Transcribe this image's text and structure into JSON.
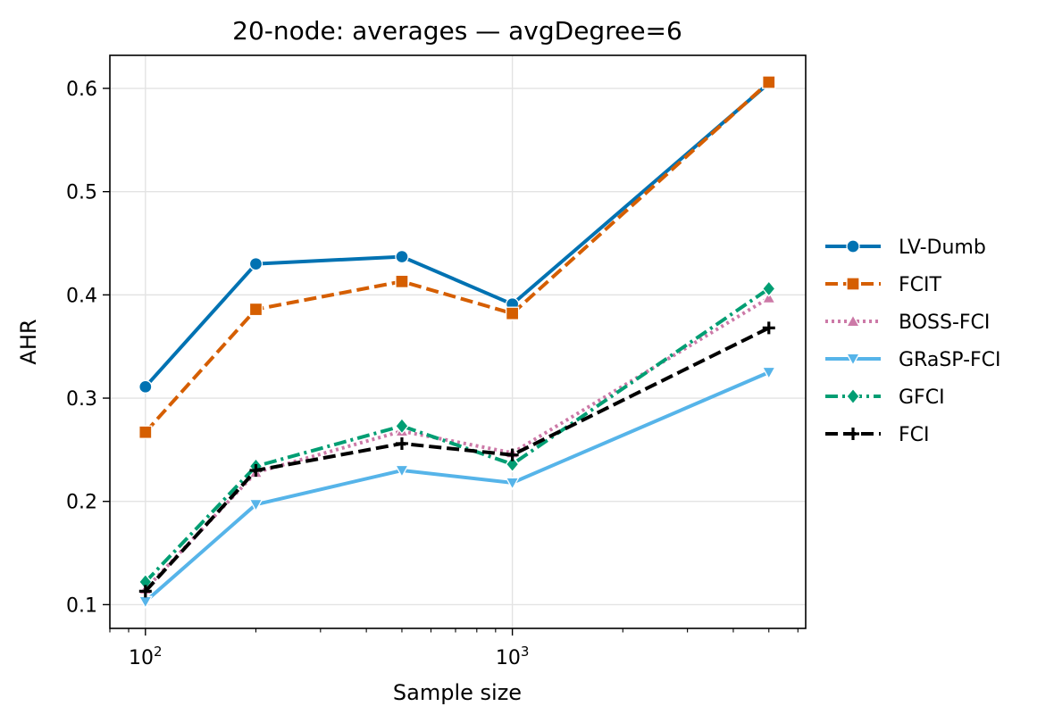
{
  "chart_data": {
    "type": "line",
    "title": "20-node: averages — avgDegree=6",
    "xlabel": "Sample size",
    "ylabel": "AHR",
    "xscale": "log",
    "xlim": [
      80,
      6300
    ],
    "ylim": [
      0.077,
      0.632
    ],
    "grid": true,
    "legend_position": "right-outside",
    "x_ticks": [
      {
        "value": 100,
        "base": "10",
        "exp": "2"
      },
      {
        "value": 1000,
        "base": "10",
        "exp": "3"
      }
    ],
    "y_ticks": [
      {
        "value": 0.1,
        "label": "0.1"
      },
      {
        "value": 0.2,
        "label": "0.2"
      },
      {
        "value": 0.3,
        "label": "0.3"
      },
      {
        "value": 0.4,
        "label": "0.4"
      },
      {
        "value": 0.5,
        "label": "0.5"
      },
      {
        "value": 0.6,
        "label": "0.6"
      }
    ],
    "x": [
      100,
      200,
      500,
      1000,
      5000
    ],
    "series": [
      {
        "name": "LV-Dumb",
        "values": [
          0.311,
          0.43,
          0.437,
          0.391,
          0.605
        ],
        "color": "#0072b2",
        "dash": "solid",
        "marker": "circle"
      },
      {
        "name": "FCIT",
        "values": [
          0.267,
          0.386,
          0.413,
          0.382,
          0.606
        ],
        "color": "#d55e00",
        "dash": "dashed",
        "marker": "square"
      },
      {
        "name": "BOSS-FCI",
        "values": [
          0.115,
          0.228,
          0.268,
          0.247,
          0.397
        ],
        "color": "#cc79a7",
        "dash": "dotted",
        "marker": "triangle-up"
      },
      {
        "name": "GRaSP-FCI",
        "values": [
          0.103,
          0.197,
          0.23,
          0.218,
          0.325
        ],
        "color": "#56b4e9",
        "dash": "solid",
        "marker": "triangle-down"
      },
      {
        "name": "GFCI",
        "values": [
          0.122,
          0.234,
          0.273,
          0.236,
          0.406
        ],
        "color": "#009e73",
        "dash": "dashdot",
        "marker": "diamond"
      },
      {
        "name": "FCI",
        "values": [
          0.113,
          0.23,
          0.256,
          0.245,
          0.368
        ],
        "color": "#000000",
        "dash": "dashed",
        "marker": "plus"
      }
    ]
  }
}
